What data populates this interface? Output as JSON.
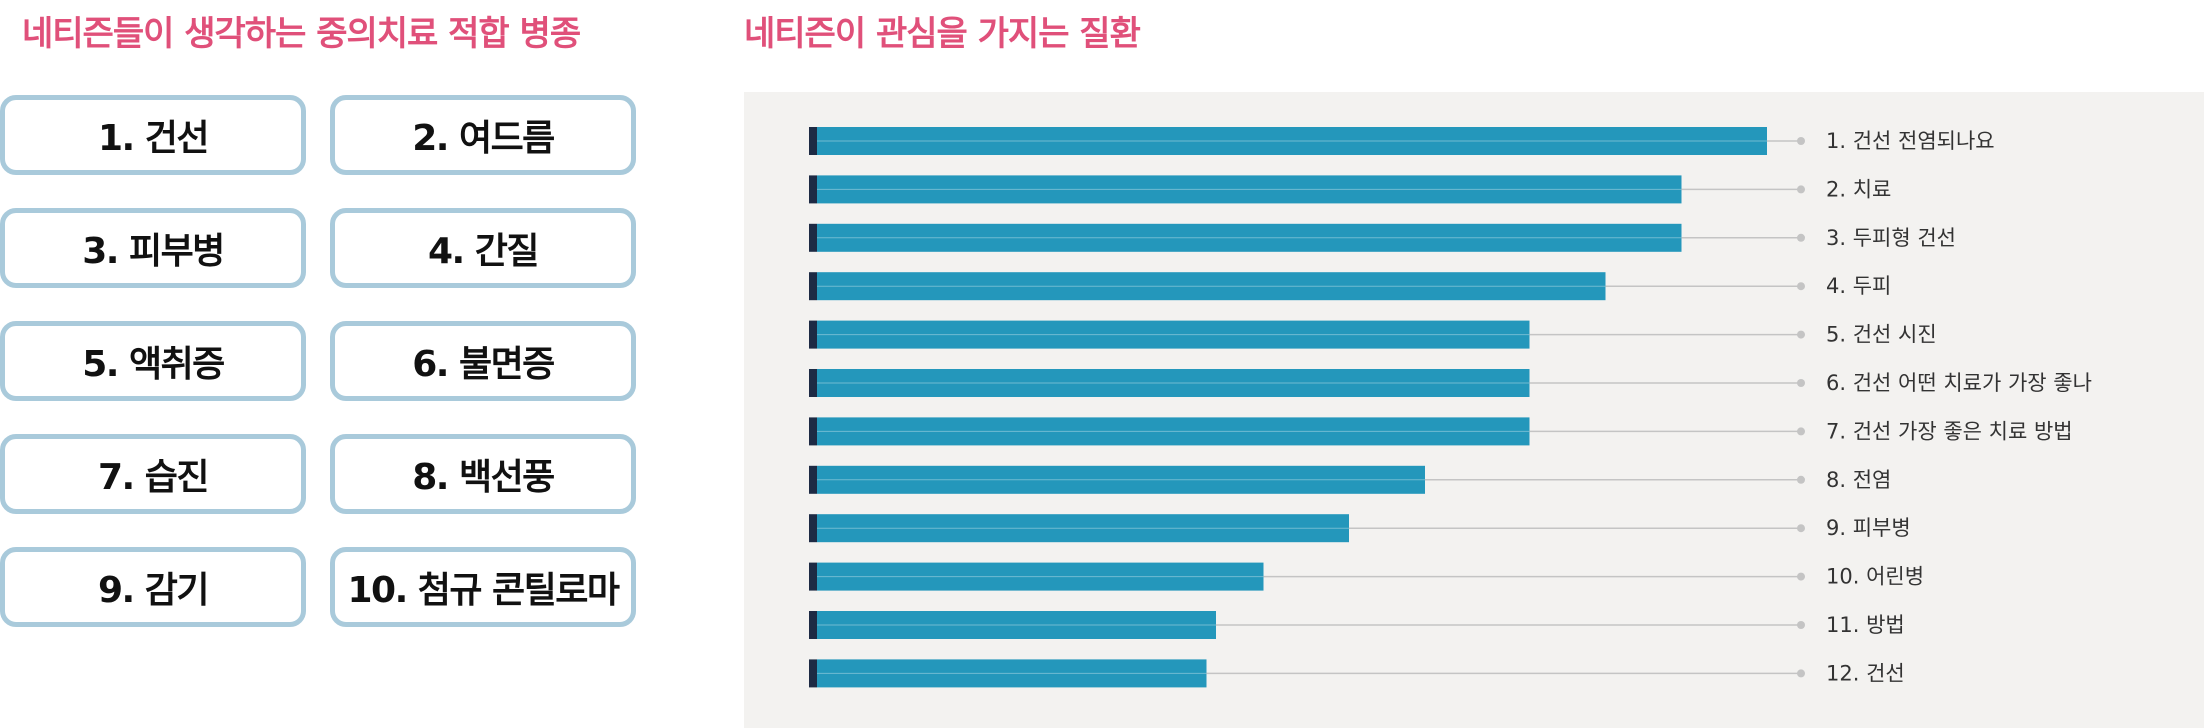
{
  "left_panel": {
    "title": "네티즌들이 생각하는 중의치료 적합 병종",
    "items": [
      "1. 건선",
      "2. 여드름",
      "3. 피부병",
      "4. 간질",
      "5. 액취증",
      "6. 불면증",
      "7. 습진",
      "8. 백선풍",
      "9. 감기",
      "10. 첨규 콘틸로마"
    ]
  },
  "right_panel": {
    "title": "네티즌이 관심을 가지는 질환"
  },
  "colors": {
    "title": "#e0507a",
    "pill_border": "#a9cadb",
    "bar": "#2497bb",
    "bar_cap": "#1d2a44",
    "leader": "#c4c4c4",
    "panel_bg": "#f3f2f0"
  },
  "chart_data": {
    "type": "bar",
    "orientation": "horizontal",
    "title": "네티즌이 관심을 가지는 질환",
    "categories": [
      "1. 건선 전염되나요",
      "2. 치료",
      "3. 두피형 건선",
      "4. 두피",
      "5. 건선 시진",
      "6. 건선 어떤 치료가 가장 좋나",
      "7. 건선 가장 좋은 치료 방법",
      "8. 전염",
      "9. 피부병",
      "10. 어린병",
      "11. 방법",
      "12. 건선"
    ],
    "values": [
      100,
      91,
      91,
      83,
      75,
      75,
      75,
      64,
      56,
      47,
      42,
      41
    ],
    "xlim": [
      0,
      100
    ],
    "grid": false,
    "axes_visible": false,
    "labels_position": "right"
  }
}
